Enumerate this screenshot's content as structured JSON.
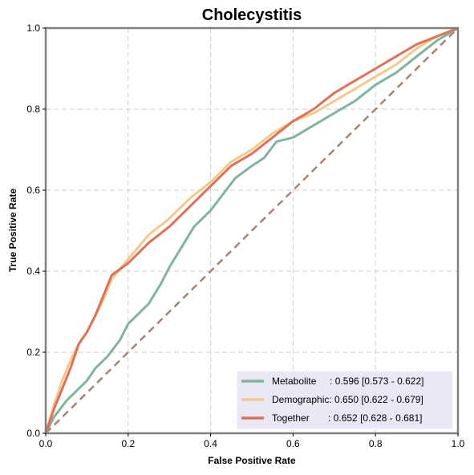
{
  "chart_data": {
    "type": "line",
    "title": "Cholecystitis",
    "xlabel": "False Positive Rate",
    "ylabel": "True Positive Rate",
    "xlim": [
      0,
      1
    ],
    "ylim": [
      0,
      1
    ],
    "xticks": [
      "0.0",
      "0.2",
      "0.4",
      "0.6",
      "0.8",
      "1.0"
    ],
    "yticks": [
      "0.0",
      "0.2",
      "0.4",
      "0.6",
      "0.8",
      "1.0"
    ],
    "grid": true,
    "legend_position": "bottom-right",
    "background_color": "#ffffff",
    "legend_bg_color": "#e6e6f5",
    "diagonal": {
      "x": [
        0,
        1
      ],
      "y": [
        0,
        1
      ],
      "color": "#a48474",
      "style": "dashed"
    },
    "series": [
      {
        "name": "Metabolite",
        "legend_label": "Metabolite     : 0.596 [0.573 - 0.622]",
        "color": "#7fb59c",
        "x": [
          0,
          0.02,
          0.05,
          0.08,
          0.1,
          0.12,
          0.15,
          0.18,
          0.2,
          0.22,
          0.25,
          0.28,
          0.3,
          0.33,
          0.36,
          0.4,
          0.43,
          0.46,
          0.5,
          0.53,
          0.56,
          0.6,
          0.65,
          0.7,
          0.75,
          0.8,
          0.85,
          0.9,
          0.95,
          1.0
        ],
        "y": [
          0,
          0.04,
          0.08,
          0.11,
          0.13,
          0.16,
          0.19,
          0.23,
          0.27,
          0.29,
          0.32,
          0.37,
          0.41,
          0.46,
          0.51,
          0.55,
          0.59,
          0.63,
          0.66,
          0.68,
          0.72,
          0.73,
          0.76,
          0.79,
          0.82,
          0.86,
          0.89,
          0.93,
          0.97,
          1.0
        ]
      },
      {
        "name": "Demographic",
        "legend_label": "Demographic: 0.650 [0.622 - 0.679]",
        "color": "#f5c98a",
        "x": [
          0,
          0.02,
          0.04,
          0.06,
          0.08,
          0.1,
          0.12,
          0.14,
          0.16,
          0.2,
          0.25,
          0.3,
          0.35,
          0.4,
          0.45,
          0.5,
          0.55,
          0.6,
          0.65,
          0.7,
          0.75,
          0.8,
          0.85,
          0.9,
          0.95,
          1.0
        ],
        "y": [
          0,
          0.07,
          0.13,
          0.18,
          0.22,
          0.25,
          0.29,
          0.33,
          0.38,
          0.43,
          0.49,
          0.53,
          0.58,
          0.62,
          0.67,
          0.7,
          0.74,
          0.77,
          0.79,
          0.82,
          0.85,
          0.88,
          0.91,
          0.95,
          0.98,
          1.0
        ]
      },
      {
        "name": "Together",
        "legend_label": "Together       : 0.652 [0.628 - 0.681]",
        "color": "#e07058",
        "x": [
          0,
          0.02,
          0.04,
          0.06,
          0.08,
          0.1,
          0.12,
          0.14,
          0.16,
          0.2,
          0.25,
          0.3,
          0.35,
          0.4,
          0.45,
          0.5,
          0.55,
          0.6,
          0.65,
          0.7,
          0.75,
          0.8,
          0.85,
          0.9,
          0.95,
          1.0
        ],
        "y": [
          0,
          0.06,
          0.11,
          0.16,
          0.22,
          0.25,
          0.29,
          0.34,
          0.39,
          0.42,
          0.47,
          0.51,
          0.56,
          0.61,
          0.66,
          0.69,
          0.73,
          0.77,
          0.8,
          0.84,
          0.87,
          0.9,
          0.93,
          0.96,
          0.98,
          1.0
        ]
      }
    ]
  }
}
